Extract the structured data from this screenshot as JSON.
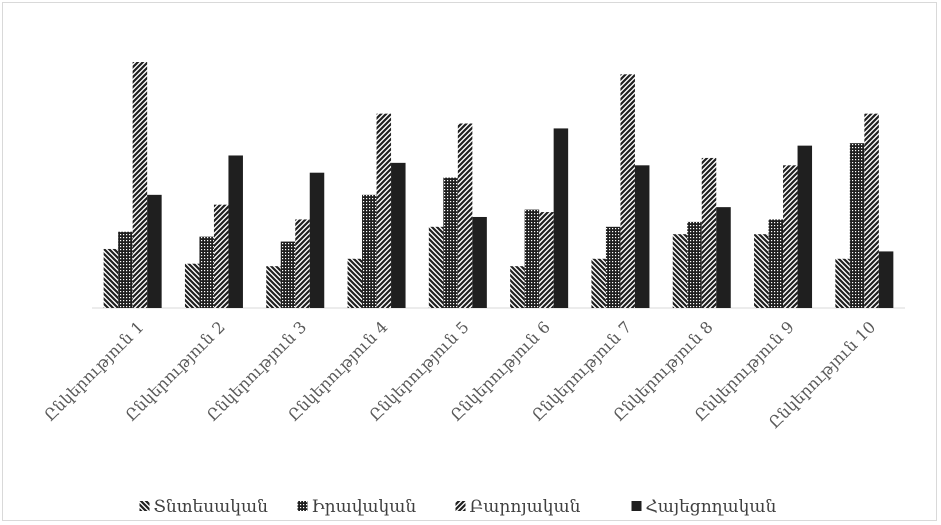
{
  "chart_data": {
    "type": "bar",
    "title": "",
    "xlabel": "",
    "ylabel": "",
    "ylim": [
      0,
      100
    ],
    "categories": [
      "Ընկերություն 1",
      "Ընկերություն 2",
      "Ընկերություն 3",
      "Ընկերություն 4",
      "Ընկերություն 5",
      "Ընկերություն 6",
      "Ընկերություն 7",
      "Ընկերություն 8",
      "Ընկերություն 9",
      "Ընկերություն 10"
    ],
    "series": [
      {
        "name": "Տնտեսական",
        "pattern": "diag-down",
        "values": [
          24,
          18,
          17,
          20,
          33,
          17,
          20,
          30,
          30,
          20
        ]
      },
      {
        "name": "Իրավական",
        "pattern": "dots",
        "values": [
          31,
          29,
          27,
          46,
          53,
          40,
          33,
          35,
          36,
          67
        ]
      },
      {
        "name": "Բարոյական",
        "pattern": "diag-up",
        "values": [
          100,
          42,
          36,
          79,
          75,
          39,
          95,
          61,
          58,
          79
        ]
      },
      {
        "name": "Հայեցողական",
        "pattern": "solid",
        "values": [
          46,
          62,
          55,
          59,
          37,
          73,
          58,
          41,
          66,
          23
        ]
      }
    ],
    "grid": false,
    "legend_position": "bottom",
    "colors": {
      "bar": "#1f1f1f",
      "axis": "#d9d9d9",
      "text": "#595959"
    }
  }
}
